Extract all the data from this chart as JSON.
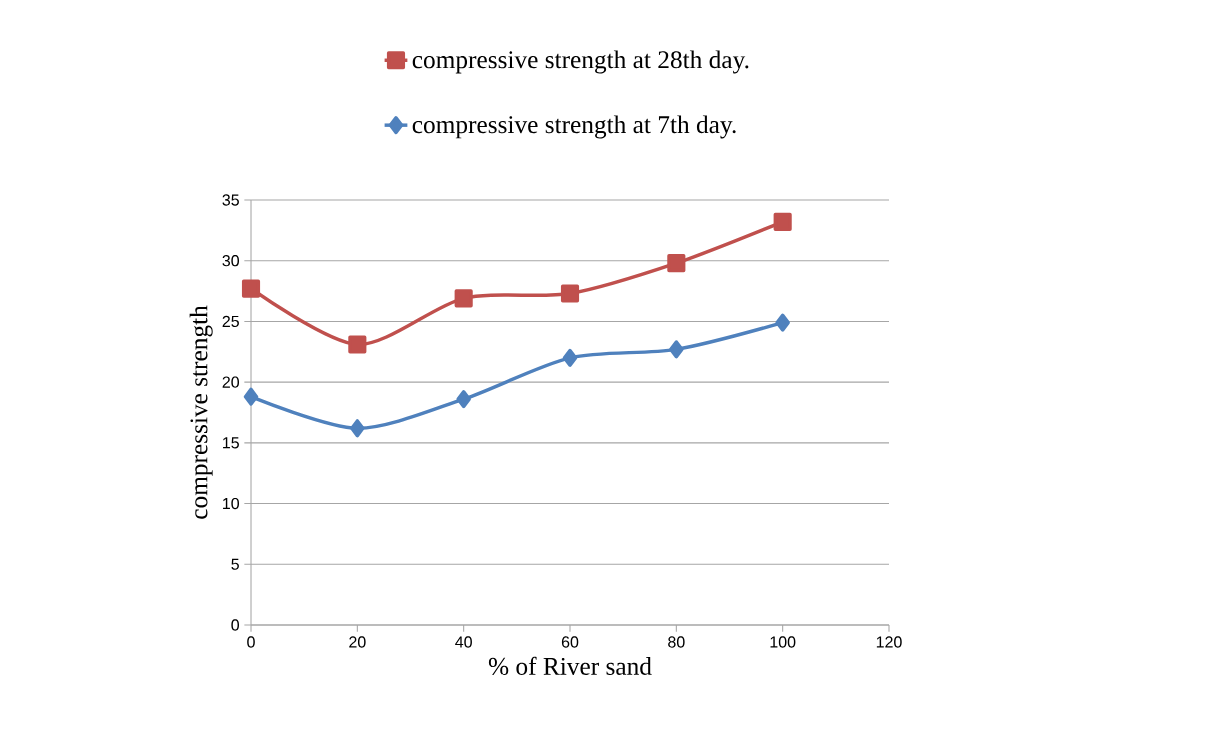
{
  "chart_data": {
    "type": "line",
    "xlabel": "% of River sand",
    "ylabel": "compressive strength",
    "x": [
      0,
      20,
      40,
      60,
      80,
      100
    ],
    "series": [
      {
        "name": "compressive strength at 28th day.",
        "color": "#c0504d",
        "marker": "square",
        "values": [
          27.7,
          23.1,
          26.9,
          27.3,
          29.8,
          33.2
        ]
      },
      {
        "name": "compressive strength at 7th day.",
        "color": "#4f81bd",
        "marker": "diamond",
        "values": [
          18.8,
          16.2,
          18.6,
          22.0,
          22.7,
          24.9
        ]
      }
    ],
    "xlim": [
      0,
      120
    ],
    "xticks": [
      0,
      20,
      40,
      60,
      80,
      100,
      120
    ],
    "ylim": [
      0,
      35
    ],
    "yticks": [
      0,
      5,
      10,
      15,
      20,
      25,
      30,
      35
    ],
    "grid": "y",
    "legend": "top"
  }
}
